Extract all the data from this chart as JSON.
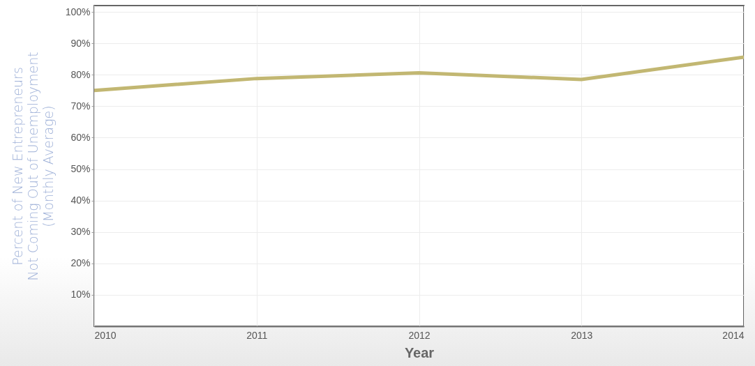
{
  "chart_data": {
    "type": "line",
    "xlabel": "Year",
    "ylabel": "Percent of New Entrepreneurs\nNot Coming Out of Unemployment\n(Monthly Average)",
    "x": [
      2010,
      2011,
      2012,
      2013,
      2014
    ],
    "series": [
      {
        "color": "#c2b772",
        "values": [
          75.0,
          78.8,
          80.6,
          78.5,
          85.6
        ]
      }
    ],
    "xlim": [
      2010,
      2014
    ],
    "xticks": [
      2010,
      2011,
      2012,
      2013,
      2014
    ],
    "ylim": [
      0,
      102
    ],
    "yticks": [
      {
        "value": 10,
        "label": "10%"
      },
      {
        "value": 20,
        "label": "20%"
      },
      {
        "value": 30,
        "label": "30%"
      },
      {
        "value": 40,
        "label": "40%"
      },
      {
        "value": 50,
        "label": "50%"
      },
      {
        "value": 60,
        "label": "60%"
      },
      {
        "value": 70,
        "label": "70%"
      },
      {
        "value": 80,
        "label": "80%"
      },
      {
        "value": 90,
        "label": "90%"
      },
      {
        "value": 100,
        "label": "100%"
      }
    ],
    "grid": true,
    "marker": "none",
    "line_style": "solid"
  }
}
